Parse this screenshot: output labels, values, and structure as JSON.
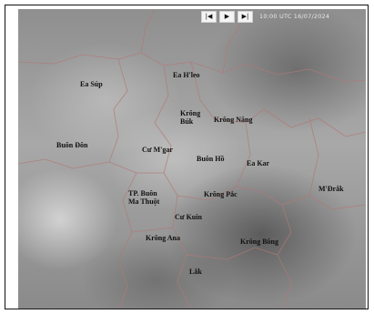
{
  "toolbar": {
    "prev_icon": "|◀",
    "play_icon": "▶",
    "next_icon": "▶|",
    "timestamp": "10:00 UTC 16/07/2024"
  },
  "map": {
    "labels": {
      "ea_sup": "Ea Súp",
      "ea_hleo": "Ea H'leo",
      "krong_buk": "Krông Búk",
      "krong_nang": "Krông Năng",
      "buon_don": "Buôn Đôn",
      "cu_mgar": "Cư M'gar",
      "buon_ho": "Buôn Hồ",
      "ea_kar": "Ea Kar",
      "mdrak": "M'Đrắk",
      "tp_buon_ma_thuot": "TP. Buôn Ma Thuột",
      "krong_pac": "Krông Pắc",
      "cu_kuin": "Cư Kuin",
      "krong_ana": "Krông Ana",
      "krong_bong": "Krông Bông",
      "lak": "Lắk"
    },
    "colors": {
      "boundary": "#b07a78",
      "label": "#111111"
    }
  }
}
